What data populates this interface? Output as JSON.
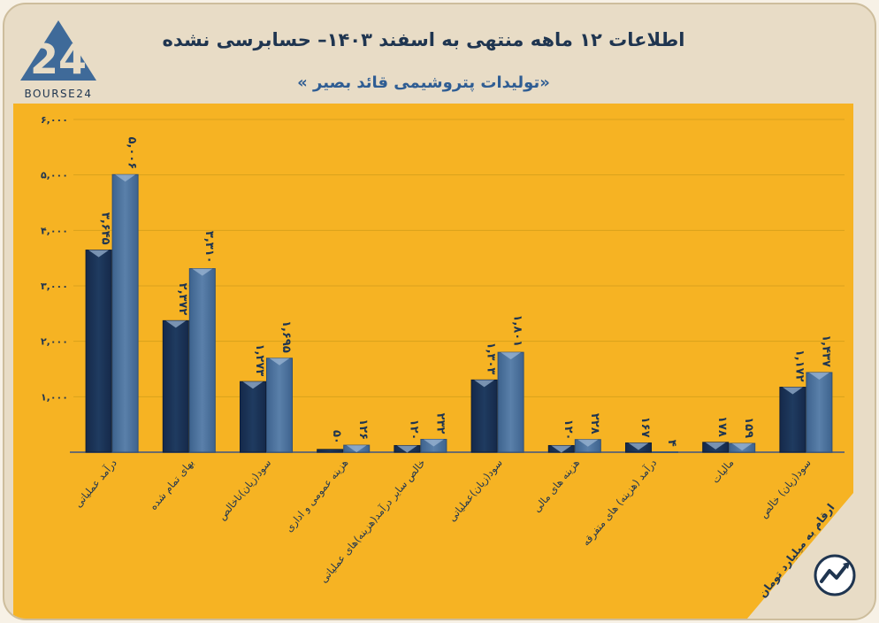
{
  "brand": {
    "logo_text": "BOURSE24"
  },
  "header": {
    "title": "اطلاعات ۱۲ ماهه منتهی به اسفند ۱۴۰۳– حسابرسی نشده",
    "subtitle": "«تولیدات پتروشیمی قائد بصیر »"
  },
  "footer": {
    "unit_note": "ارقام به میلیارد تومان"
  },
  "colors": {
    "series_1": "#1f3b60",
    "series_2": "#5a80aa",
    "panel": "#f6b323",
    "frame": "#e8dcc6"
  },
  "chart_data": {
    "type": "bar",
    "title": "",
    "xlabel": "",
    "ylabel": "",
    "ylim": [
      0,
      6000
    ],
    "grid": true,
    "y_ticks": [
      0,
      1000,
      2000,
      3000,
      4000,
      5000,
      6000
    ],
    "y_tick_labels": [
      "",
      "۱,۰۰۰",
      "۲,۰۰۰",
      "۳,۰۰۰",
      "۴,۰۰۰",
      "۵,۰۰۰",
      "۶,۰۰۰"
    ],
    "categories": [
      "درآمد عملیاتی",
      "بهای تمام شده",
      "سود(زیان)ناخالص",
      "هزینه عمومی و اداری",
      "خالص سایر درآمد(هزینه)های عملیاتی",
      "سود(زیان)عملیاتی",
      "هزینه های مالی",
      "درآمد (هزینه) های متفرقه",
      "مالیات",
      "سود(زیان) خالص"
    ],
    "series": [
      {
        "values": [
          3645,
          2372,
          1273,
          50,
          120,
          1303,
          120,
          167,
          178,
          1172
        ],
        "labels": [
          "۳,۶۴۵",
          "۲,۳۷۲",
          "۱,۲۷۳",
          "۵۰",
          "۱۲۰",
          "۱,۳۰۳",
          "۱۲۰",
          "۱۶۷",
          "۱۷۸",
          "۱,۱۷۲"
        ]
      },
      {
        "values": [
          5006,
          3310,
          1695,
          126,
          232,
          1801,
          228,
          4,
          159,
          1437
        ],
        "labels": [
          "۵,۰۰۶",
          "۳,۳۱۰",
          "۱,۶۹۵",
          "۱۲۶",
          "۲۳۲",
          "۱,۸۰۱",
          "۲۲۸",
          "۴",
          "۱۵۹",
          "۱,۴۳۷"
        ]
      }
    ]
  }
}
